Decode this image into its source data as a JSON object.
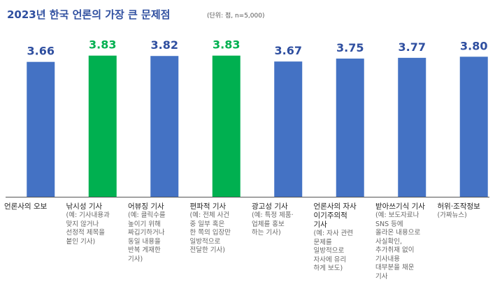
{
  "header": {
    "title": "2023년  한국 언론의 가장 큰 문제점",
    "subtitle": "(단위: 점, n=5,000)"
  },
  "colors": {
    "primary": "#4472c4",
    "highlight": "#00b050",
    "value_text": "#2f4fa0"
  },
  "chart_data": {
    "type": "bar",
    "title": "2023년  한국 언론의 가장 큰 문제점",
    "subtitle": "(단위: 점, n=5,000)",
    "ylim": [
      0,
      3.9
    ],
    "grid": false,
    "categories": [
      {
        "label": "언론사의 오보",
        "desc": ""
      },
      {
        "label": "낚시성 기사",
        "desc": "(예: 기사내용과\n맞지 않거나\n선정적 제목을\n붙인 기사)"
      },
      {
        "label": "어뷰징 기사",
        "desc": "(예: 클릭수를\n높이기 위해\n짜깁기하거나\n동일 내용을\n반복 게재한\n기사)"
      },
      {
        "label": "편파적 기사",
        "desc": "(예: 전체 사건\n중 일부 혹은\n한 쪽의 입장만\n일방적으로\n전달한 기사)"
      },
      {
        "label": "광고성 기사",
        "desc": "(예: 특정 제품·\n업체를 홍보\n하는 기사)"
      },
      {
        "label": "언론사의 자사\n이기주의적\n기사",
        "desc": "(예: 자사 관련\n문제를\n일방적으로\n자사에 유리\n하게 보도)"
      },
      {
        "label": "받아쓰기식 기사",
        "desc": "(예: 보도자료나\nSNS 등에\n올라온 내용으로\n사실확인,\n추가취재 없이\n기사내용\n대부분을 채운\n기사"
      },
      {
        "label": "허위·조작정보",
        "desc": "(가짜뉴스)"
      }
    ],
    "values": [
      3.66,
      3.83,
      3.82,
      3.83,
      3.67,
      3.75,
      3.77,
      3.8
    ],
    "value_labels": [
      "3.66",
      "3.83",
      "3.82",
      "3.83",
      "3.67",
      "3.75",
      "3.77",
      "3.80"
    ],
    "highlighted": [
      false,
      true,
      false,
      true,
      false,
      false,
      false,
      false
    ]
  }
}
